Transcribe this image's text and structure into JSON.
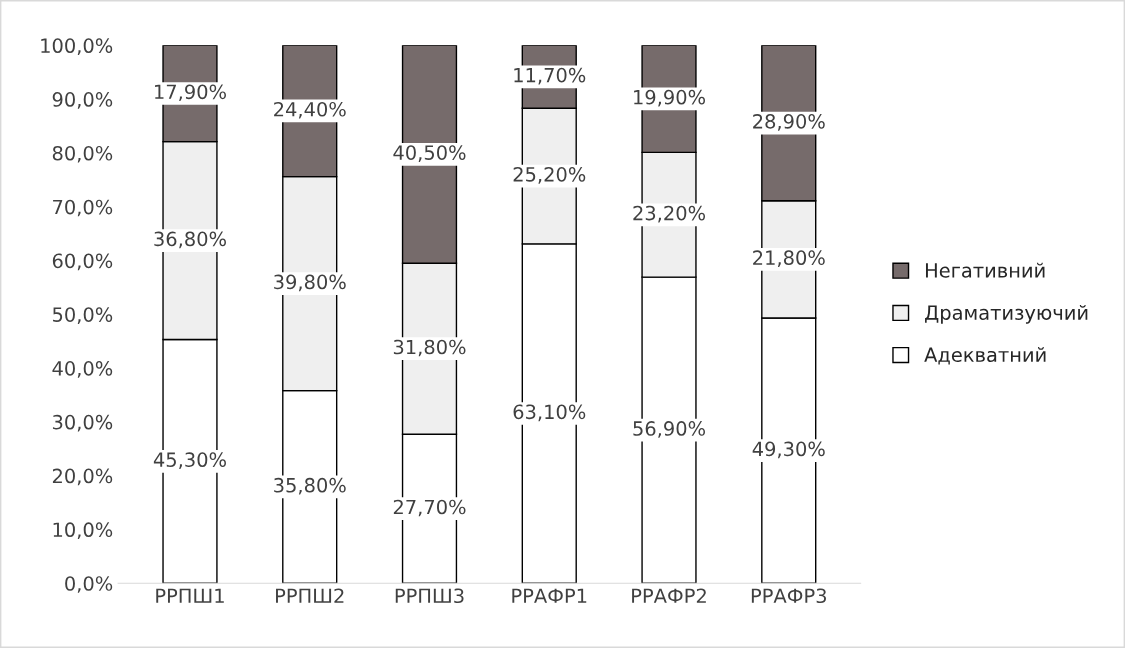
{
  "chart_data": {
    "type": "bar",
    "stacked": true,
    "categories": [
      "РРПШ1",
      "РРПШ2",
      "РРПШ3",
      "РРАФР1",
      "РРАФР2",
      "РРАФР3"
    ],
    "series": [
      {
        "name": "Адекватний",
        "color": "#ffffff",
        "values": [
          45.3,
          35.8,
          27.7,
          63.1,
          56.9,
          49.3
        ],
        "value_labels": [
          "45,30%",
          "35,80%",
          "27,70%",
          "63,10%",
          "56,90%",
          "49,30%"
        ]
      },
      {
        "name": "Драматизуючий",
        "color": "#efefef",
        "values": [
          36.8,
          39.8,
          31.8,
          25.2,
          23.2,
          21.8
        ],
        "value_labels": [
          "36,80%",
          "39,80%",
          "31,80%",
          "25,20%",
          "23,20%",
          "21,80%"
        ]
      },
      {
        "name": "Негативний",
        "color": "#766b6b",
        "values": [
          17.9,
          24.4,
          40.5,
          11.7,
          19.9,
          28.9
        ],
        "value_labels": [
          "17,90%",
          "24,40%",
          "40,50%",
          "11,70%",
          "19,90%",
          "28,90%"
        ]
      }
    ],
    "ylim": [
      0,
      100
    ],
    "yticks": [
      {
        "value": 0,
        "label": "0,0%"
      },
      {
        "value": 10,
        "label": "10,0%"
      },
      {
        "value": 20,
        "label": "20,0%"
      },
      {
        "value": 30,
        "label": "30,0%"
      },
      {
        "value": 40,
        "label": "40,0%"
      },
      {
        "value": 50,
        "label": "50,0%"
      },
      {
        "value": 60,
        "label": "60,0%"
      },
      {
        "value": 70,
        "label": "70,0%"
      },
      {
        "value": 80,
        "label": "80,0%"
      },
      {
        "value": 90,
        "label": "90,0%"
      },
      {
        "value": 100,
        "label": "100,0%"
      }
    ],
    "grid": false,
    "legend": "right"
  }
}
